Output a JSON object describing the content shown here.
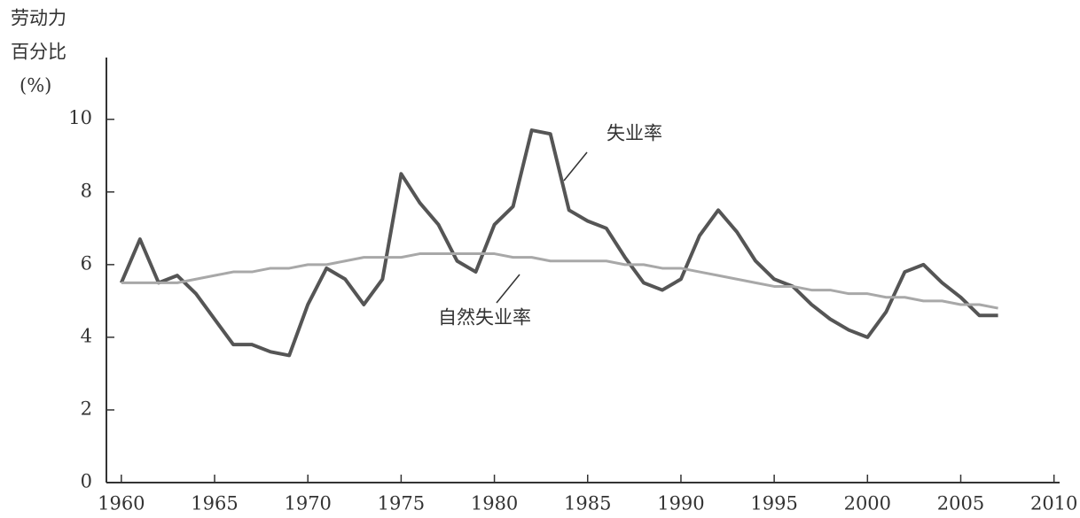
{
  "chart_data": {
    "type": "line",
    "y_label": [
      "劳动力",
      "百分比",
      "(%)"
    ],
    "x": [
      1960,
      1961,
      1962,
      1963,
      1964,
      1965,
      1966,
      1967,
      1968,
      1969,
      1970,
      1971,
      1972,
      1973,
      1974,
      1975,
      1976,
      1977,
      1978,
      1979,
      1980,
      1981,
      1982,
      1983,
      1984,
      1985,
      1986,
      1987,
      1988,
      1989,
      1990,
      1991,
      1992,
      1993,
      1994,
      1995,
      1996,
      1997,
      1998,
      1999,
      2000,
      2001,
      2002,
      2003,
      2004,
      2005,
      2006,
      2007
    ],
    "series": [
      {
        "name": "失业率",
        "color": "#555555",
        "values": [
          5.5,
          6.7,
          5.5,
          5.7,
          5.2,
          4.5,
          3.8,
          3.8,
          3.6,
          3.5,
          4.9,
          5.9,
          5.6,
          4.9,
          5.6,
          8.5,
          7.7,
          7.1,
          6.1,
          5.8,
          7.1,
          7.6,
          9.7,
          9.6,
          7.5,
          7.2,
          7.0,
          6.2,
          5.5,
          5.3,
          5.6,
          6.8,
          7.5,
          6.9,
          6.1,
          5.6,
          5.4,
          4.9,
          4.5,
          4.2,
          4.0,
          4.7,
          5.8,
          6.0,
          5.5,
          5.1,
          4.6,
          4.6
        ]
      },
      {
        "name": "自然失业率",
        "color": "#a8a8a8",
        "values": [
          5.5,
          5.5,
          5.5,
          5.5,
          5.6,
          5.7,
          5.8,
          5.8,
          5.9,
          5.9,
          6.0,
          6.0,
          6.1,
          6.2,
          6.2,
          6.2,
          6.3,
          6.3,
          6.3,
          6.3,
          6.3,
          6.2,
          6.2,
          6.1,
          6.1,
          6.1,
          6.1,
          6.0,
          6.0,
          5.9,
          5.9,
          5.8,
          5.7,
          5.6,
          5.5,
          5.4,
          5.4,
          5.3,
          5.3,
          5.2,
          5.2,
          5.1,
          5.1,
          5.0,
          5.0,
          4.9,
          4.9,
          4.8
        ]
      }
    ],
    "xlim": [
      1959.2,
      2010.3
    ],
    "xticks": [
      1960,
      1965,
      1970,
      1975,
      1980,
      1985,
      1990,
      1995,
      2000,
      2005,
      2010
    ],
    "ylim": [
      0,
      11.7
    ],
    "yticks": [
      0,
      2,
      4,
      6,
      8,
      10
    ],
    "grid": false
  }
}
